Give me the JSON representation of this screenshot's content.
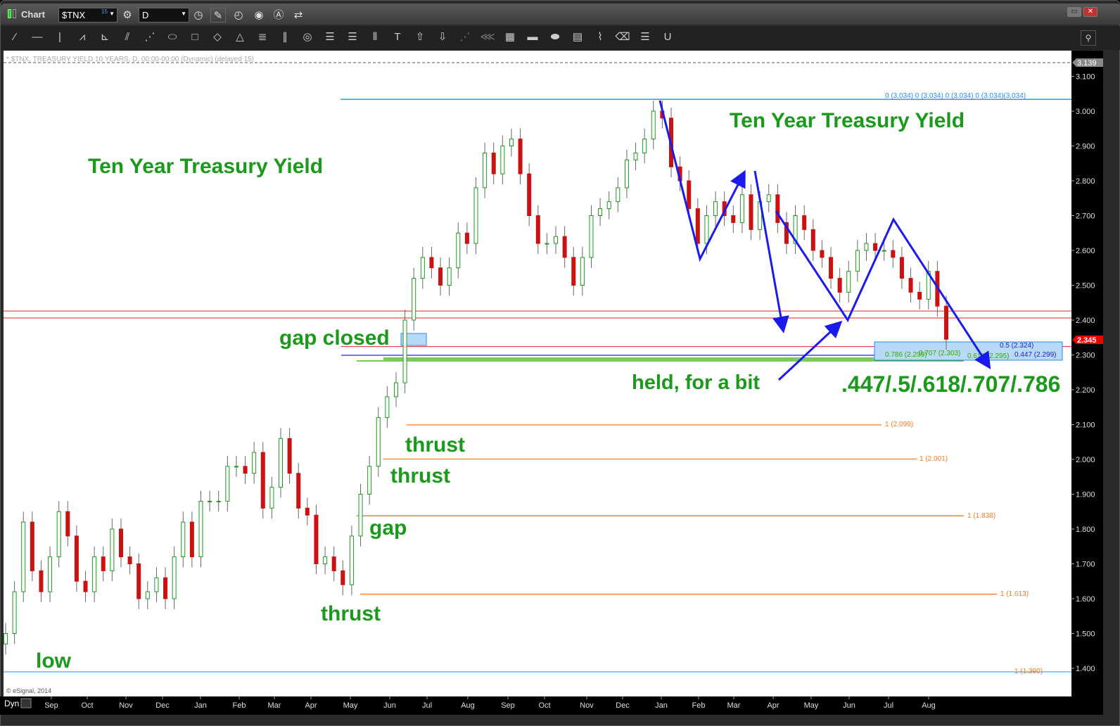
{
  "window": {
    "title": "Chart",
    "symbol": "$TNX",
    "symbol_delay": "15",
    "interval": "D",
    "restore_label": "▭",
    "close_label": "✕"
  },
  "toolbar_icons": [
    "settings-icon",
    "clock-icon",
    "pencil-icon",
    "chart-refresh-icon",
    "play-icon",
    "alert-icon",
    "link-icon"
  ],
  "drawing_tools": [
    {
      "name": "line-tool",
      "g": "⁄"
    },
    {
      "name": "horizontal-line-tool",
      "g": "—"
    },
    {
      "name": "vertical-line-tool",
      "g": "|"
    },
    {
      "name": "zigzag-tool",
      "g": "⩘"
    },
    {
      "name": "gann-fan-tool",
      "g": "⊾"
    },
    {
      "name": "fib-fan-tool",
      "g": "⫽"
    },
    {
      "name": "speed-lines-tool",
      "g": "⋰"
    },
    {
      "name": "ellipse-tool",
      "g": "⬭"
    },
    {
      "name": "rectangle-tool",
      "g": "□"
    },
    {
      "name": "diamond-tool",
      "g": "◇"
    },
    {
      "name": "triangle-tool",
      "g": "△"
    },
    {
      "name": "channel-tool",
      "g": "≣"
    },
    {
      "name": "parallel-lines-tool",
      "g": "∥"
    },
    {
      "name": "cycles-tool",
      "g": "◎"
    },
    {
      "name": "fib-retracement-tool",
      "g": "☰"
    },
    {
      "name": "fib-extension-tool",
      "g": "☰"
    },
    {
      "name": "time-zones-tool",
      "g": "⦀"
    },
    {
      "name": "text-tool",
      "g": "T"
    },
    {
      "name": "arrow-up-tool",
      "g": "⇧"
    },
    {
      "name": "arrow-down-tool",
      "g": "⇩"
    },
    {
      "name": "fan-lines-tool",
      "g": "⋰",
      "dim": true
    },
    {
      "name": "andrews-tool",
      "g": "⋘",
      "dim": true
    },
    {
      "name": "grid-tool",
      "g": "▦"
    },
    {
      "name": "mob-tool",
      "g": "▬"
    },
    {
      "name": "tj-tool",
      "g": "⬬"
    },
    {
      "name": "pti-tool",
      "g": "▤"
    },
    {
      "name": "trend-tool",
      "g": "⌇"
    },
    {
      "name": "eraser-tool",
      "g": "⌫"
    },
    {
      "name": "comment-tool",
      "g": "☰"
    },
    {
      "name": "magnet-tool",
      "g": "U"
    }
  ],
  "chart_data": {
    "type": "candlestick",
    "header": "* $TNX, TREASURY YIELD 10 YEARS, D, 00:00-00:00 (Dynamic) (delayed 15)",
    "copyright": "© eSignal, 2014",
    "x_corner": "Dyn",
    "ylim": [
      1.38,
      3.16
    ],
    "y_ticks": [
      "3.100",
      "3.000",
      "2.900",
      "2.800",
      "2.700",
      "2.600",
      "2.500",
      "2.400",
      "2.300",
      "2.200",
      "2.100",
      "2.000",
      "1.900",
      "1.800",
      "1.700",
      "1.600",
      "1.500",
      "1.400"
    ],
    "x_ticks": [
      "Sep",
      "Oct",
      "Nov",
      "Dec",
      "Jan",
      "Feb",
      "Mar",
      "Apr",
      "May",
      "Jun",
      "Jul",
      "Aug",
      "Sep",
      "Oct",
      "Nov",
      "Dec",
      "Jan",
      "Feb",
      "Mar",
      "Apr",
      "May",
      "Jun",
      "Jul",
      "Aug"
    ],
    "last_price": "2.345",
    "high_marker": "3.139",
    "weekly_closes": [
      1.5,
      1.62,
      1.82,
      1.68,
      1.62,
      1.72,
      1.85,
      1.78,
      1.65,
      1.62,
      1.72,
      1.68,
      1.8,
      1.72,
      1.7,
      1.6,
      1.62,
      1.66,
      1.6,
      1.72,
      1.82,
      1.72,
      1.88,
      1.88,
      1.88,
      1.98,
      1.98,
      1.96,
      2.02,
      1.86,
      1.92,
      2.06,
      1.96,
      1.86,
      1.84,
      1.7,
      1.72,
      1.68,
      1.64,
      1.78,
      1.9,
      1.98,
      2.12,
      2.18,
      2.22,
      2.4,
      2.52,
      2.58,
      2.55,
      2.5,
      2.55,
      2.65,
      2.62,
      2.78,
      2.88,
      2.82,
      2.9,
      2.92,
      2.82,
      2.7,
      2.62,
      2.62,
      2.64,
      2.58,
      2.5,
      2.58,
      2.7,
      2.72,
      2.74,
      2.78,
      2.86,
      2.88,
      2.92,
      3.0,
      2.98,
      2.84,
      2.8,
      2.72,
      2.62,
      2.7,
      2.74,
      2.7,
      2.68,
      2.76,
      2.66,
      2.74,
      2.76,
      2.68,
      2.62,
      2.7,
      2.66,
      2.6,
      2.58,
      2.52,
      2.48,
      2.54,
      2.6,
      2.62,
      2.6,
      2.6,
      2.58,
      2.52,
      2.48,
      2.46,
      2.54,
      2.44,
      2.345
    ],
    "fib_levels": [
      {
        "label": "0 (3.034)  0 (3.034)      0 (3.034)  0 (3.034)(3.034)",
        "value": 3.034,
        "color": "#1e8fff"
      },
      {
        "label": "0.5 (2.324)",
        "value": 2.324,
        "color": "#2222dd"
      },
      {
        "label": "0.447 (2.299)",
        "value": 2.299,
        "color": "#2222dd"
      },
      {
        "label": "0.786 (2.299)",
        "value": 2.299,
        "color": "#33aa00"
      },
      {
        "label": "0.707 (2.303)",
        "value": 2.303,
        "color": "#33aa00"
      },
      {
        "label": "0.618 (2.295)",
        "value": 2.295,
        "color": "#33aa00"
      },
      {
        "label": "1 (2.099)",
        "value": 2.099,
        "color": "#ff7a1a"
      },
      {
        "label": "1 (2.001)",
        "value": 2.001,
        "color": "#ff7a1a"
      },
      {
        "label": "1 (1.838)",
        "value": 1.838,
        "color": "#ff7a1a"
      },
      {
        "label": "1 (1.613)",
        "value": 1.613,
        "color": "#ff7a1a"
      },
      {
        "label": "1 (1.390)",
        "value": 1.39,
        "color": "#ff7a1a"
      }
    ],
    "red_lines": [
      2.42,
      2.4
    ],
    "annotations": {
      "title_left": "Ten Year Treasury Yield",
      "title_right": "Ten Year Treasury Yield",
      "gap_closed": "gap closed",
      "held": "held, for a bit",
      "fibs": ".447/.5/.618/.707/.786",
      "thrust1": "thrust",
      "thrust2": "thrust",
      "gap": "gap",
      "thrust3": "thrust",
      "low": "low"
    },
    "colors": {
      "up": "#1a9a1a",
      "down": "#cc1111",
      "annotation": "#1a9a1a",
      "arrow": "#1a1aee"
    }
  }
}
